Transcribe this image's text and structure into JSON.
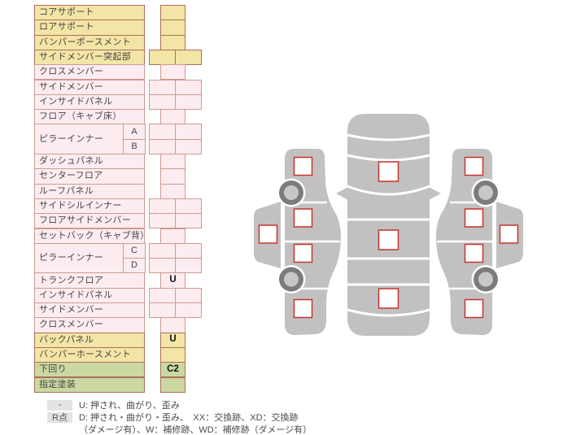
{
  "table": {
    "rows": [
      {
        "label": "コアサポート",
        "color": "yellow",
        "cells": "single",
        "value": ""
      },
      {
        "label": "ロアサポート",
        "color": "yellow",
        "cells": "single",
        "value": ""
      },
      {
        "label": "バンパーポースメント",
        "color": "yellow",
        "cells": "single",
        "value": ""
      },
      {
        "label": "サイドメンバー突起部",
        "color": "yellow",
        "cells": "double"
      },
      {
        "label": "クロスメンバー",
        "color": "pink",
        "cells": "single",
        "value": ""
      },
      {
        "label": "サイドメンバー",
        "color": "pink",
        "cells": "double"
      },
      {
        "label": "インサイドパネル",
        "color": "pink",
        "cells": "double"
      },
      {
        "label": "フロア（キャブ床）",
        "color": "pink",
        "cells": "single",
        "value": ""
      },
      {
        "label": "ピラーインナー",
        "color": "pink",
        "cells": "double",
        "subs": [
          "A",
          "B"
        ]
      },
      {
        "label": "ダッシュパネル",
        "color": "pink",
        "cells": "single",
        "value": ""
      },
      {
        "label": "センターフロア",
        "color": "pink",
        "cells": "single",
        "value": ""
      },
      {
        "label": "ルーフパネル",
        "color": "pink",
        "cells": "single",
        "value": ""
      },
      {
        "label": "サイドシルインナー",
        "color": "pink",
        "cells": "double"
      },
      {
        "label": "フロアサイドメンバー",
        "color": "pink",
        "cells": "double"
      },
      {
        "label": "セットバック（キャブ背）",
        "color": "pink",
        "cells": "single",
        "value": ""
      },
      {
        "label": "ピラーインナー",
        "color": "pink",
        "cells": "double",
        "subs": [
          "C",
          "D"
        ]
      },
      {
        "label": "トランクフロア",
        "color": "pink",
        "cells": "single",
        "value": "U"
      },
      {
        "label": "インサイドパネル",
        "color": "pink",
        "cells": "double"
      },
      {
        "label": "サイドメンバー",
        "color": "pink",
        "cells": "double"
      },
      {
        "label": "クロスメンバー",
        "color": "pink",
        "cells": "single",
        "value": ""
      },
      {
        "label": "バックパネル",
        "color": "yellow",
        "cells": "single",
        "value": "U"
      },
      {
        "label": "バンパーホースメント",
        "color": "yellow",
        "cells": "single",
        "value": ""
      },
      {
        "label": "下回り",
        "color": "green",
        "cells": "single",
        "value": "C2"
      },
      {
        "label": "指定塗装",
        "color": "green",
        "cells": "single",
        "value": ""
      }
    ]
  },
  "legend": {
    "key1": "-",
    "text1": "U: 押され、曲がり、歪み",
    "key2": "R点",
    "text2": "D: 押され・曲がり・歪み、　XX：交換跡、XD：交換跡",
    "text3": "（ダメージ有）、W：補修跡、WD：補修跡（ダメージ有）"
  },
  "diagram": {
    "markers": [
      "hood",
      "roof",
      "trunk",
      "left-window",
      "left-front-fender",
      "left-front-door",
      "left-rear-door",
      "left-rear-quarter",
      "right-window",
      "right-front-fender",
      "right-front-door",
      "right-rear-door",
      "right-rear-quarter"
    ]
  },
  "colors": {
    "yellow": "#f3e5a5",
    "pink": "#fdecef",
    "green": "#cbd8a2",
    "border_strong": "#ab6f5b",
    "border_pink": "#cf9a92",
    "body_gray": "#c2c1c0",
    "wheel_ring": "#7c7c7c",
    "wheel_hub": "#c8c8c8",
    "marker_red": "#c4342d",
    "legend_key_bg": "#e3e3e3"
  }
}
